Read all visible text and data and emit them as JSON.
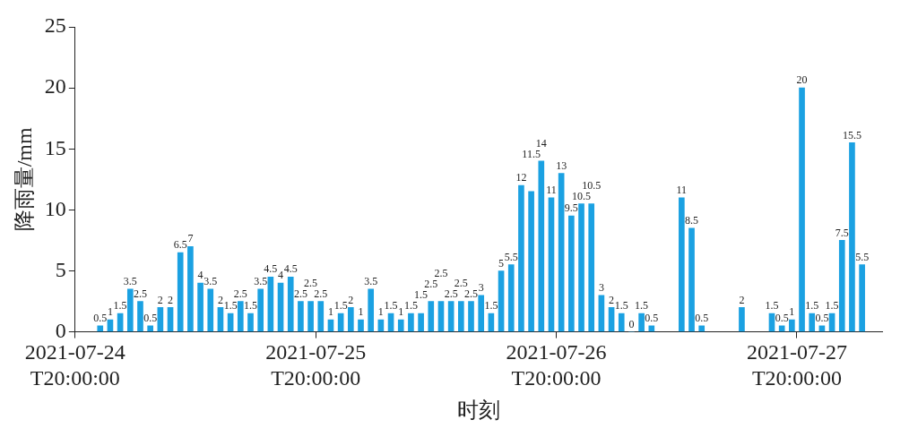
{
  "chart_data": {
    "type": "bar",
    "xlabel": "时刻",
    "ylabel": "降雨量/mm",
    "color": "#1ba1e2",
    "x": [
      "2021-07-24T22:30",
      "2021-07-24T23:30",
      "2021-07-25T00:30",
      "2021-07-25T01:30",
      "2021-07-25T02:30",
      "2021-07-25T03:30",
      "2021-07-25T04:30",
      "2021-07-25T05:30",
      "2021-07-25T06:30",
      "2021-07-25T07:30",
      "2021-07-25T08:30",
      "2021-07-25T09:30",
      "2021-07-25T10:30",
      "2021-07-25T11:30",
      "2021-07-25T12:30",
      "2021-07-25T13:30",
      "2021-07-25T14:30",
      "2021-07-25T15:30",
      "2021-07-25T16:30",
      "2021-07-25T17:30",
      "2021-07-25T18:30",
      "2021-07-25T19:30",
      "2021-07-25T20:30",
      "2021-07-25T21:30",
      "2021-07-25T22:30",
      "2021-07-25T23:30",
      "2021-07-26T00:30",
      "2021-07-26T01:30",
      "2021-07-26T02:30",
      "2021-07-26T03:30",
      "2021-07-26T04:30",
      "2021-07-26T05:30",
      "2021-07-26T06:30",
      "2021-07-26T07:30",
      "2021-07-26T08:30",
      "2021-07-26T09:30",
      "2021-07-26T10:30",
      "2021-07-26T11:30",
      "2021-07-26T12:30",
      "2021-07-26T13:30",
      "2021-07-26T14:30",
      "2021-07-26T15:30",
      "2021-07-26T16:30",
      "2021-07-26T17:30",
      "2021-07-26T18:30",
      "2021-07-26T19:30",
      "2021-07-26T20:30",
      "2021-07-26T21:30",
      "2021-07-26T22:30",
      "2021-07-26T23:30",
      "2021-07-27T00:30",
      "2021-07-27T01:30",
      "2021-07-27T02:30",
      "2021-07-27T03:30",
      "2021-07-27T04:30",
      "2021-07-27T05:30",
      "2021-07-27T06:30",
      "2021-07-27T07:30",
      "2021-07-27T08:30",
      "2021-07-27T09:30",
      "2021-07-27T10:30",
      "2021-07-27T11:30",
      "2021-07-27T12:30",
      "2021-07-27T13:30",
      "2021-07-27T14:30",
      "2021-07-27T15:30",
      "2021-07-27T16:30",
      "2021-07-27T17:30",
      "2021-07-27T18:30",
      "2021-07-27T19:30",
      "2021-07-27T20:30",
      "2021-07-27T21:30",
      "2021-07-27T22:30",
      "2021-07-27T23:30",
      "2021-07-28T00:30",
      "2021-07-28T01:30",
      "2021-07-28T02:30"
    ],
    "values": [
      0.5,
      1,
      1.5,
      3.5,
      2.5,
      0.5,
      2,
      2,
      6.5,
      7,
      4,
      3.5,
      2,
      1.5,
      2.5,
      1.5,
      3.5,
      4.5,
      4,
      4.5,
      2.5,
      2.5,
      2.5,
      1,
      1.5,
      2,
      1,
      3.5,
      1,
      1.5,
      1,
      1.5,
      1.5,
      2.5,
      2.5,
      2.5,
      2.5,
      2.5,
      3,
      1.5,
      5,
      5.5,
      12,
      11.5,
      14,
      11,
      13,
      9.5,
      10.5,
      10.5,
      3,
      2,
      1.5,
      0,
      1.5,
      0.5,
      null,
      null,
      11,
      8.5,
      0.5,
      null,
      null,
      null,
      2,
      null,
      null,
      1.5,
      0.5,
      1,
      20,
      1.5,
      0.5,
      1.5,
      7.5,
      15.5,
      5.5
    ],
    "data_labels": true,
    "xlim": [
      "2021-07-24T20:00",
      "2021-07-28T04:30"
    ],
    "xticks": [
      {
        "value": "2021-07-24T20:00",
        "label": "2021-07-24\nT20:00:00"
      },
      {
        "value": "2021-07-25T20:00",
        "label": "2021-07-25\nT20:00:00"
      },
      {
        "value": "2021-07-26T20:00",
        "label": "2021-07-26\nT20:00:00"
      },
      {
        "value": "2021-07-27T20:00",
        "label": "2021-07-27\nT20:00:00"
      }
    ],
    "ylim": [
      0,
      25
    ],
    "yticks": [
      0,
      5,
      10,
      15,
      20,
      25
    ],
    "grid": false,
    "legend": false
  }
}
